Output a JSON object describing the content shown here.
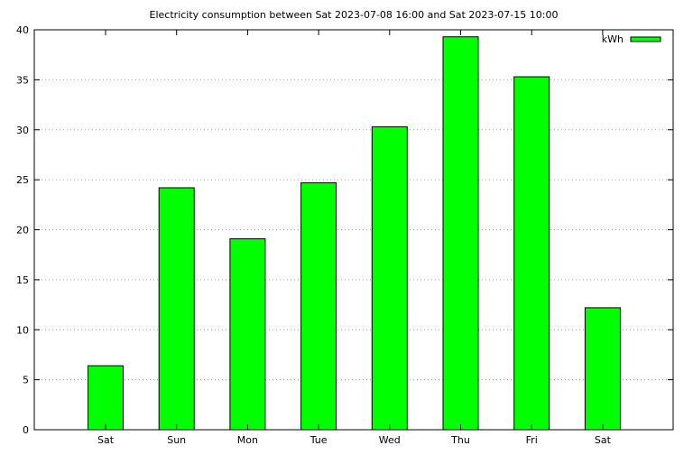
{
  "chart_data": {
    "type": "bar",
    "title": "Electricity consumption between Sat 2023-07-08 16:00 and Sat 2023-07-15 10:00",
    "xlabel": "",
    "ylabel": "",
    "categories": [
      "Sat",
      "Sun",
      "Mon",
      "Tue",
      "Wed",
      "Thu",
      "Fri",
      "Sat"
    ],
    "series": [
      {
        "name": "kWh",
        "values": [
          6.4,
          24.2,
          19.1,
          24.7,
          30.3,
          39.3,
          35.3,
          12.2
        ]
      }
    ],
    "ylim": [
      0,
      40
    ],
    "yticks": [
      "0",
      "5",
      "10",
      "15",
      "20",
      "25",
      "30",
      "35",
      "40"
    ],
    "grid": true,
    "legend": "top-right",
    "colors": {
      "bar_fill": "#00ff00",
      "bar_stroke": "#000000",
      "grid": "#a0a0a0",
      "axis": "#000000"
    }
  }
}
